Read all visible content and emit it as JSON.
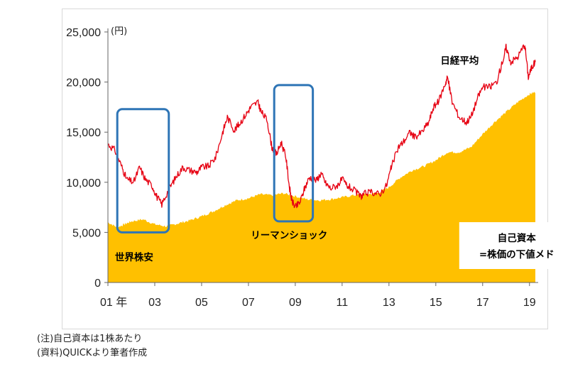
{
  "chart_data": {
    "type": "area",
    "unit_label": "(円)",
    "xlim": [
      2001.0,
      2019.25
    ],
    "ylim": [
      0,
      25000
    ],
    "y_ticks": [
      0,
      5000,
      10000,
      15000,
      20000,
      25000
    ],
    "y_tick_labels": [
      "0",
      "5,000",
      "10,000",
      "15,000",
      "20,000",
      "25,000"
    ],
    "x_ticks": [
      2001,
      2003,
      2005,
      2007,
      2009,
      2011,
      2013,
      2015,
      2017,
      2019
    ],
    "x_tick_labels": [
      "01 年",
      "03",
      "05",
      "07",
      "09",
      "11",
      "13",
      "15",
      "17",
      "19"
    ],
    "series": [
      {
        "name": "日経平均",
        "type": "line",
        "color": "#e60012",
        "x": [
          2001.0,
          2001.3,
          2001.6,
          2001.8,
          2002.1,
          2002.35,
          2002.6,
          2002.9,
          2003.1,
          2003.3,
          2003.6,
          2003.9,
          2004.2,
          2004.5,
          2004.8,
          2005.0,
          2005.3,
          2005.6,
          2005.9,
          2006.1,
          2006.4,
          2006.6,
          2006.9,
          2007.1,
          2007.4,
          2007.55,
          2007.8,
          2008.0,
          2008.2,
          2008.4,
          2008.6,
          2008.75,
          2008.85,
          2009.0,
          2009.2,
          2009.4,
          2009.6,
          2009.9,
          2010.1,
          2010.3,
          2010.5,
          2010.8,
          2011.0,
          2011.2,
          2011.5,
          2011.8,
          2012.0,
          2012.3,
          2012.6,
          2012.9,
          2013.1,
          2013.4,
          2013.6,
          2013.9,
          2014.1,
          2014.4,
          2014.7,
          2014.9,
          2015.1,
          2015.4,
          2015.5,
          2015.7,
          2016.0,
          2016.3,
          2016.5,
          2016.8,
          2017.0,
          2017.3,
          2017.6,
          2017.9,
          2018.0,
          2018.2,
          2018.5,
          2018.8,
          2018.95,
          2019.1,
          2019.25
        ],
        "values": [
          13800,
          13200,
          11500,
          10300,
          10000,
          11500,
          10300,
          9600,
          8500,
          7800,
          9300,
          10500,
          11500,
          11200,
          11000,
          11500,
          11600,
          12500,
          15000,
          16500,
          15200,
          15800,
          16800,
          17500,
          18000,
          17000,
          16200,
          13500,
          12800,
          14000,
          12500,
          9500,
          8200,
          7500,
          8000,
          9400,
          10500,
          10200,
          10900,
          9900,
          9400,
          9700,
          10300,
          9700,
          9200,
          8600,
          8900,
          9000,
          8800,
          9700,
          11500,
          13500,
          14000,
          15000,
          14500,
          15000,
          16000,
          17500,
          18000,
          19800,
          20500,
          18000,
          16500,
          16000,
          16500,
          18500,
          19500,
          19500,
          20000,
          22500,
          23500,
          22000,
          22500,
          23800,
          20500,
          21500,
          22000
        ]
      },
      {
        "name": "自己資本",
        "type": "area",
        "color": "#ffc000",
        "x": [
          2001.0,
          2001.4,
          2001.7,
          2002.0,
          2002.5,
          2003.0,
          2003.5,
          2004.0,
          2004.5,
          2005.0,
          2005.5,
          2006.0,
          2006.5,
          2007.0,
          2007.5,
          2008.0,
          2008.5,
          2009.0,
          2009.5,
          2010.0,
          2010.5,
          2011.0,
          2011.5,
          2012.0,
          2012.5,
          2013.0,
          2013.5,
          2014.0,
          2014.5,
          2015.0,
          2015.5,
          2016.0,
          2016.5,
          2017.0,
          2017.5,
          2018.0,
          2018.5,
          2019.0,
          2019.25
        ],
        "values": [
          6000,
          5500,
          5800,
          6100,
          6300,
          5800,
          5600,
          5900,
          6200,
          6600,
          7100,
          7700,
          8200,
          8400,
          8800,
          8700,
          8900,
          8600,
          8300,
          8200,
          8300,
          8500,
          8700,
          8800,
          8900,
          9500,
          10500,
          11200,
          11600,
          12200,
          13000,
          13000,
          13500,
          14800,
          16000,
          17000,
          18000,
          18800,
          19000
        ]
      }
    ],
    "annotations": [
      {
        "text": "日経平均",
        "x": 2015.2,
        "y": 21800
      },
      {
        "text": "世界株安",
        "x": 2001.3,
        "y": 2200
      },
      {
        "text": "リーマンショック",
        "x": 2007.1,
        "y": 4400
      },
      {
        "text": "自己資本",
        "line2": "=株価の下値メド",
        "x": 2016.0,
        "y": 4500
      }
    ],
    "highlight_boxes": [
      {
        "x_start": 2001.4,
        "x_end": 2003.6,
        "y_start": 5000,
        "y_end": 17300
      },
      {
        "x_start": 2008.1,
        "x_end": 2009.75,
        "y_start": 6100,
        "y_end": 19700
      }
    ],
    "grid": false
  },
  "notes": [
    "(注)自己資本は1株あたり",
    "(資料)QUICKより筆者作成"
  ]
}
